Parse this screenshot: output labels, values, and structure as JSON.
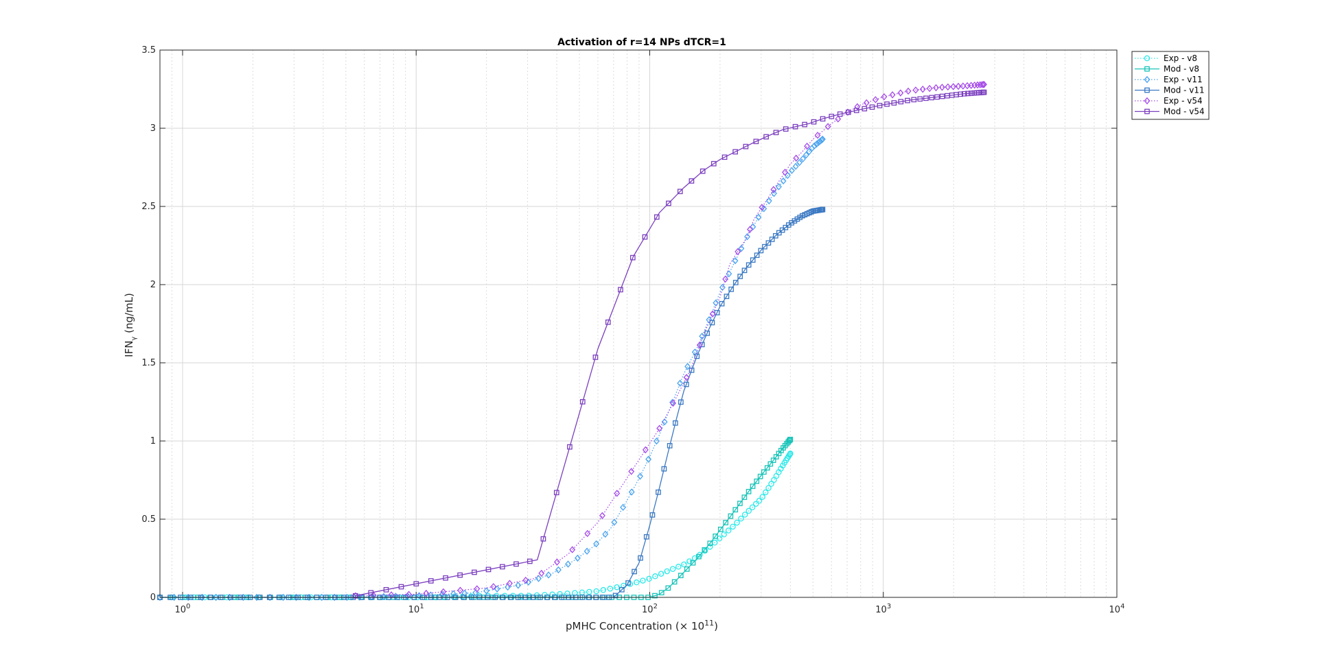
{
  "chart_data": {
    "type": "line",
    "title": "Activation of r=14 NPs dTCR=1",
    "xlabel": {
      "prefix": "pMHC Concentration (× 10",
      "sup": "11",
      "suffix": ")"
    },
    "ylabel": {
      "main": "IFN",
      "sub": "γ",
      "suffix": " (ng/mL)"
    },
    "xscale": "log",
    "xlim": [
      0.8,
      10000
    ],
    "ylim": [
      0,
      3.5
    ],
    "yticks": [
      "0",
      "0.5",
      "1",
      "1.5",
      "2",
      "2.5",
      "3",
      "3.5"
    ],
    "xticks": [
      {
        "base": "10",
        "exp": "0"
      },
      {
        "base": "10",
        "exp": "1"
      },
      {
        "base": "10",
        "exp": "2"
      },
      {
        "base": "10",
        "exp": "3"
      },
      {
        "base": "10",
        "exp": "4"
      }
    ],
    "grid": true,
    "legend_position": "outside-top-right",
    "series": [
      {
        "name": "Exp - v8",
        "style": "dotted",
        "marker": "circle",
        "color": "#2ee8e8",
        "points": [
          [
            0.8,
            0
          ],
          [
            1.2,
            0
          ],
          [
            2,
            0
          ],
          [
            3,
            0
          ],
          [
            5,
            0
          ],
          [
            8,
            0
          ],
          [
            13,
            0
          ],
          [
            20,
            0.01
          ],
          [
            30,
            0.01
          ],
          [
            40,
            0.02
          ],
          [
            50,
            0.03
          ],
          [
            60,
            0.04
          ],
          [
            70,
            0.06
          ],
          [
            80,
            0.08
          ],
          [
            90,
            0.1
          ],
          [
            100,
            0.12
          ],
          [
            120,
            0.17
          ],
          [
            140,
            0.21
          ],
          [
            160,
            0.26
          ],
          [
            180,
            0.32
          ],
          [
            200,
            0.38
          ],
          [
            230,
            0.46
          ],
          [
            260,
            0.54
          ],
          [
            300,
            0.63
          ],
          [
            340,
            0.75
          ],
          [
            370,
            0.84
          ],
          [
            400,
            0.92
          ]
        ],
        "marker_count": 95,
        "x_end": 400
      },
      {
        "name": "Mod - v8",
        "style": "solid",
        "marker": "square",
        "color": "#17c3b8",
        "points": [
          [
            0.8,
            0
          ],
          [
            5,
            0
          ],
          [
            20,
            0
          ],
          [
            50,
            0
          ],
          [
            80,
            0
          ],
          [
            100,
            0
          ],
          [
            110,
            0.02
          ],
          [
            120,
            0.06
          ],
          [
            130,
            0.11
          ],
          [
            140,
            0.16
          ],
          [
            160,
            0.25
          ],
          [
            180,
            0.34
          ],
          [
            200,
            0.43
          ],
          [
            230,
            0.55
          ],
          [
            260,
            0.66
          ],
          [
            300,
            0.78
          ],
          [
            340,
            0.88
          ],
          [
            370,
            0.95
          ],
          [
            400,
            1.01
          ]
        ],
        "marker_count": 85,
        "x_end": 400
      },
      {
        "name": "Exp - v11",
        "style": "dotted",
        "marker": "diamond",
        "color": "#4aa3ee",
        "points": [
          [
            0.8,
            0
          ],
          [
            2,
            0
          ],
          [
            5,
            0
          ],
          [
            10,
            0.01
          ],
          [
            18,
            0.03
          ],
          [
            28,
            0.08
          ],
          [
            38,
            0.15
          ],
          [
            48,
            0.24
          ],
          [
            58,
            0.33
          ],
          [
            68,
            0.44
          ],
          [
            80,
            0.62
          ],
          [
            90,
            0.76
          ],
          [
            100,
            0.9
          ],
          [
            110,
            1.04
          ],
          [
            120,
            1.18
          ],
          [
            130,
            1.31
          ],
          [
            140,
            1.43
          ],
          [
            160,
            1.6
          ],
          [
            180,
            1.78
          ],
          [
            200,
            1.95
          ],
          [
            230,
            2.14
          ],
          [
            260,
            2.3
          ],
          [
            300,
            2.46
          ],
          [
            350,
            2.61
          ],
          [
            400,
            2.72
          ],
          [
            450,
            2.8
          ],
          [
            500,
            2.88
          ],
          [
            550,
            2.93
          ]
        ],
        "marker_count": 80,
        "x_end": 550
      },
      {
        "name": "Mod - v11",
        "style": "solid",
        "marker": "square",
        "color": "#3a78c2",
        "points": [
          [
            0.8,
            0
          ],
          [
            5,
            0
          ],
          [
            20,
            0
          ],
          [
            50,
            0
          ],
          [
            70,
            0
          ],
          [
            80,
            0.08
          ],
          [
            90,
            0.22
          ],
          [
            100,
            0.46
          ],
          [
            110,
            0.7
          ],
          [
            120,
            0.93
          ],
          [
            130,
            1.14
          ],
          [
            140,
            1.32
          ],
          [
            160,
            1.55
          ],
          [
            180,
            1.72
          ],
          [
            200,
            1.86
          ],
          [
            230,
            2.0
          ],
          [
            260,
            2.11
          ],
          [
            300,
            2.22
          ],
          [
            350,
            2.32
          ],
          [
            400,
            2.39
          ],
          [
            450,
            2.44
          ],
          [
            500,
            2.47
          ],
          [
            550,
            2.48
          ]
        ],
        "marker_count": 110,
        "x_end": 550
      },
      {
        "name": "Exp - v54",
        "style": "dotted",
        "marker": "diamond",
        "color": "#a54be8",
        "points": [
          [
            5.5,
            0.01
          ],
          [
            10,
            0.02
          ],
          [
            20,
            0.06
          ],
          [
            32,
            0.12
          ],
          [
            45,
            0.28
          ],
          [
            60,
            0.48
          ],
          [
            75,
            0.7
          ],
          [
            90,
            0.88
          ],
          [
            110,
            1.08
          ],
          [
            130,
            1.28
          ],
          [
            150,
            1.46
          ],
          [
            170,
            1.68
          ],
          [
            200,
            1.92
          ],
          [
            220,
            2.13
          ],
          [
            260,
            2.3
          ],
          [
            280,
            2.42
          ],
          [
            320,
            2.55
          ],
          [
            350,
            2.64
          ],
          [
            400,
            2.77
          ],
          [
            450,
            2.85
          ],
          [
            500,
            2.93
          ],
          [
            600,
            3.03
          ],
          [
            700,
            3.1
          ],
          [
            800,
            3.15
          ],
          [
            1000,
            3.2
          ],
          [
            1300,
            3.24
          ],
          [
            1700,
            3.26
          ],
          [
            2200,
            3.27
          ],
          [
            2700,
            3.28
          ]
        ],
        "marker_count": 60,
        "x_end": 2700
      },
      {
        "name": "Mod - v54",
        "style": "solid",
        "marker": "square",
        "color": "#7b3fbf",
        "points": [
          [
            5.5,
            0.01
          ],
          [
            33,
            0.24
          ],
          [
            60,
            1.59
          ],
          [
            85,
            2.18
          ],
          [
            110,
            2.46
          ],
          [
            140,
            2.62
          ],
          [
            170,
            2.73
          ],
          [
            200,
            2.8
          ],
          [
            240,
            2.86
          ],
          [
            280,
            2.91
          ],
          [
            320,
            2.95
          ],
          [
            370,
            2.99
          ],
          [
            420,
            3.01
          ],
          [
            480,
            3.03
          ],
          [
            550,
            3.06
          ],
          [
            650,
            3.09
          ],
          [
            800,
            3.12
          ],
          [
            1000,
            3.15
          ],
          [
            1300,
            3.18
          ],
          [
            1700,
            3.2
          ],
          [
            2200,
            3.22
          ],
          [
            2700,
            3.23
          ]
        ],
        "marker_count": 70,
        "x_end": 2700
      }
    ]
  }
}
